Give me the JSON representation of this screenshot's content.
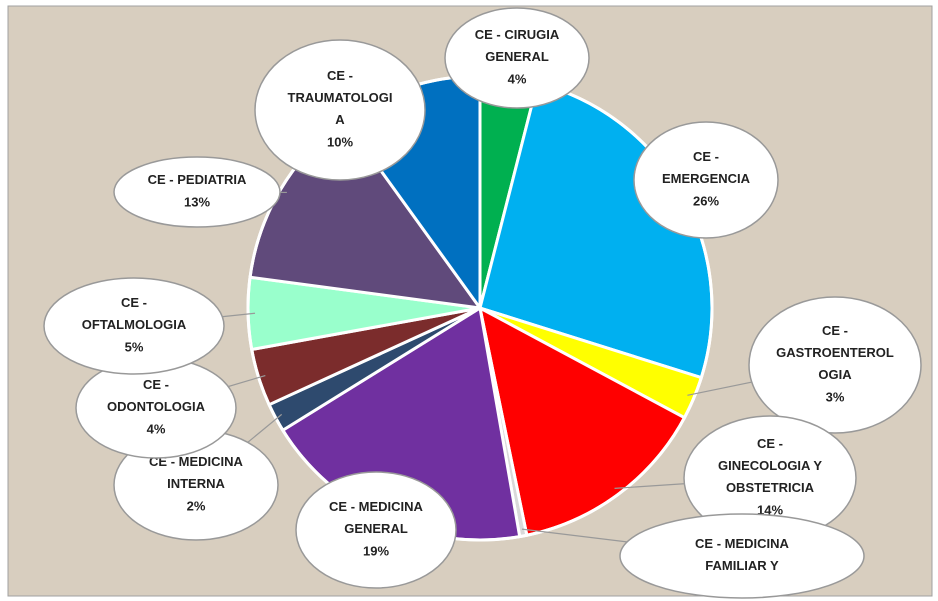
{
  "chart_data": {
    "type": "pie",
    "categories": [
      "CE - CIRUGIA\nGENERAL",
      "CE -\nEMERGENCIA",
      "CE -\nGASTROENTEROL\nOGIA",
      "CE -\nGINECOLOGIA Y\nOBSTETRICIA",
      "CE - MEDICINA\nFAMILIAR Y",
      "CE - MEDICINA\nGENERAL",
      "CE - MEDICINA\nINTERNA",
      "CE -\nODONTOLOGIA",
      "CE -\nOFTALMOLOGIA",
      "CE - PEDIATRIA",
      "CE -\nTRAUMATOLOGI\nA"
    ],
    "values": [
      4,
      26,
      3,
      14,
      0.5,
      19,
      2,
      4,
      5,
      13,
      10
    ],
    "value_labels": [
      "4%",
      "26%",
      "3%",
      "14%",
      null,
      "19%",
      "2%",
      "4%",
      "5%",
      "13%",
      "10%"
    ],
    "colors": [
      "#00b050",
      "#00b0f0",
      "#ffff00",
      "#ff0000",
      "#d9d9d9",
      "#7030a0",
      "#2e4a6e",
      "#7b2c2c",
      "#99ffcc",
      "#604a7b",
      "#0070c0"
    ]
  }
}
